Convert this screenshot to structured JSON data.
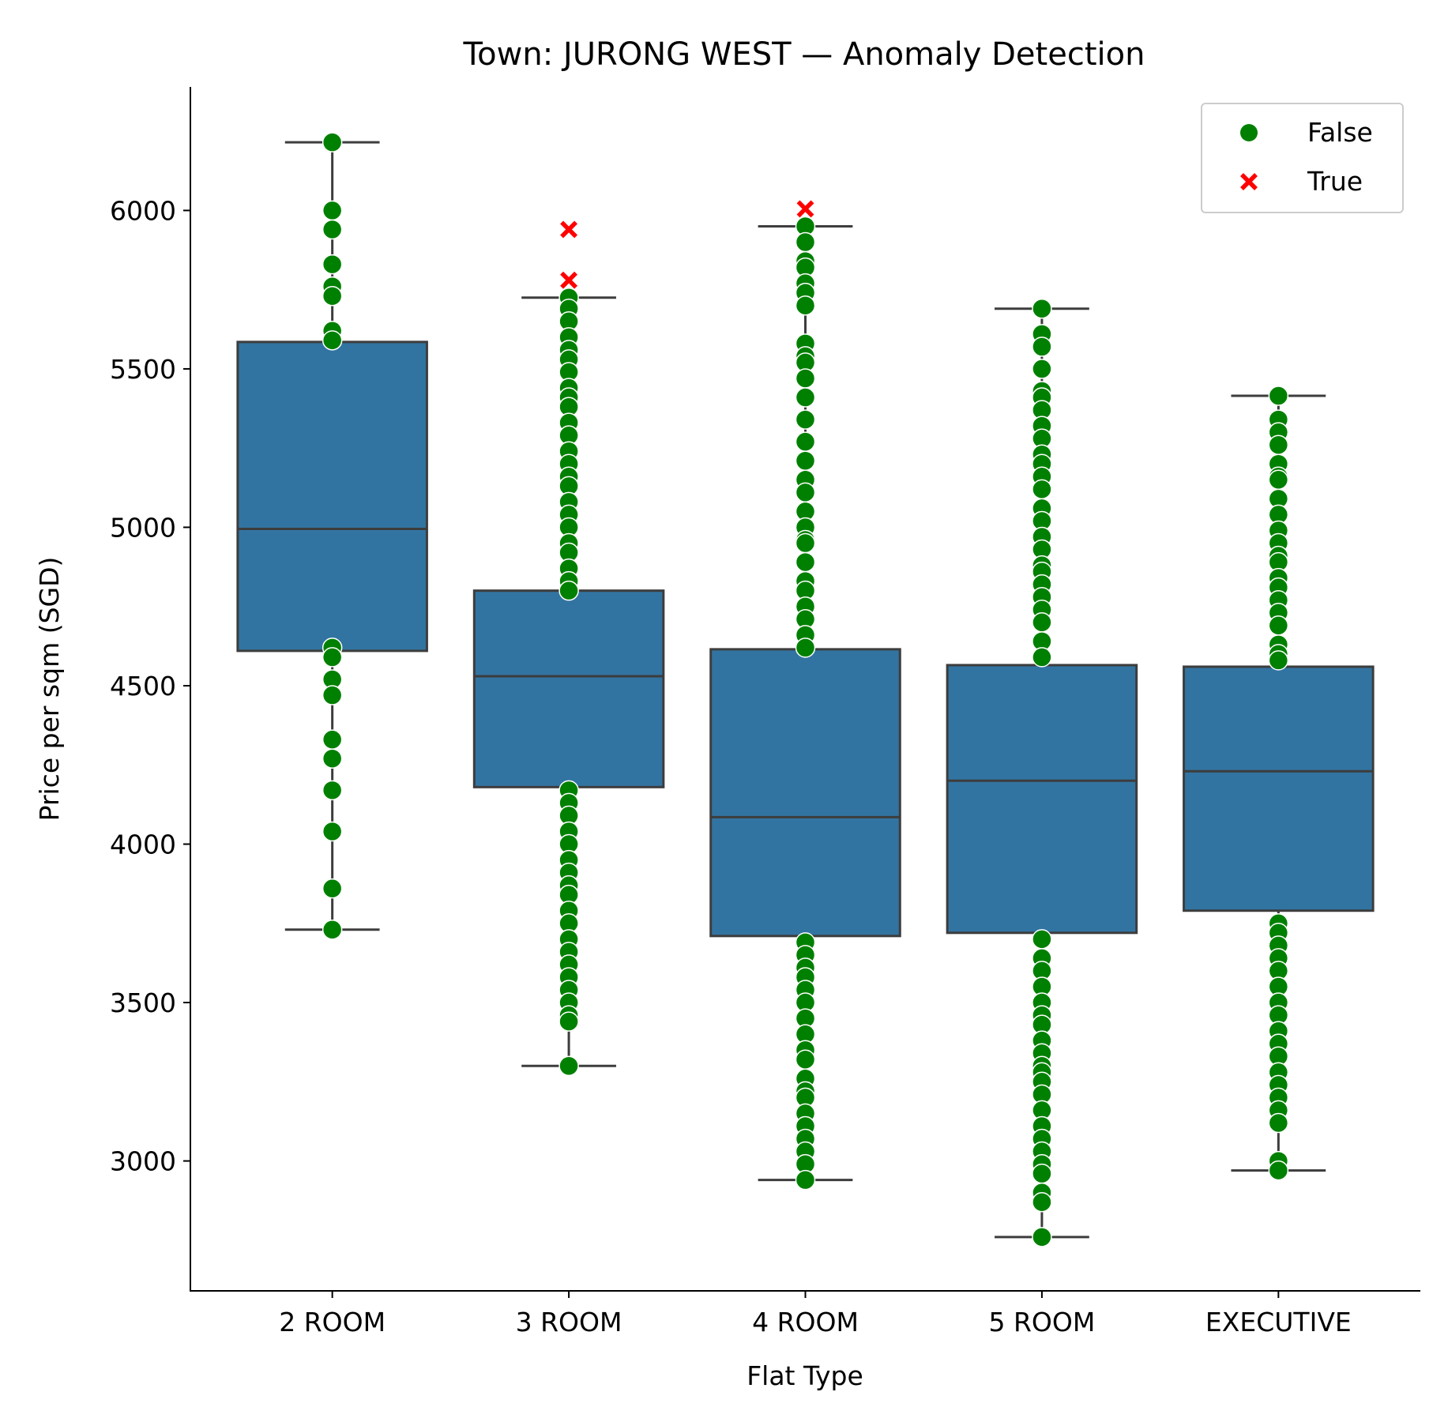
{
  "chart_data": {
    "type": "box",
    "title": "Town: JURONG WEST — Anomaly Detection",
    "xlabel": "Flat Type",
    "ylabel": "Price per sqm (SGD)",
    "ylim": [
      2590,
      6390
    ],
    "yticks": [
      3000,
      3500,
      4000,
      4500,
      5000,
      5500,
      6000
    ],
    "categories": [
      "2 ROOM",
      "3 ROOM",
      "4 ROOM",
      "5 ROOM",
      "EXECUTIVE"
    ],
    "boxes": [
      {
        "category": "2 ROOM",
        "whisker_low": 3730,
        "q1": 4610,
        "median": 4995,
        "q3": 5585,
        "whisker_high": 6215
      },
      {
        "category": "3 ROOM",
        "whisker_low": 3300,
        "q1": 4180,
        "median": 4530,
        "q3": 4800,
        "whisker_high": 5725
      },
      {
        "category": "4 ROOM",
        "whisker_low": 2940,
        "q1": 3710,
        "median": 4085,
        "q3": 4615,
        "whisker_high": 5950
      },
      {
        "category": "5 ROOM",
        "whisker_low": 2760,
        "q1": 3720,
        "median": 4200,
        "q3": 4565,
        "whisker_high": 5690
      },
      {
        "category": "EXECUTIVE",
        "whisker_low": 2970,
        "q1": 3790,
        "median": 4230,
        "q3": 4560,
        "whisker_high": 5415
      }
    ],
    "series": [
      {
        "name": "False",
        "color": "#008000",
        "marker": "circle",
        "points": [
          {
            "category": "2 ROOM",
            "values": [
              6215,
              6000,
              5940,
              5830,
              5760,
              5730,
              5620,
              5590,
              4620,
              4590,
              4520,
              4470,
              4330,
              4270,
              4170,
              4040,
              3860,
              3730
            ]
          },
          {
            "category": "3 ROOM",
            "values": [
              5725,
              5690,
              5650,
              5600,
              5560,
              5530,
              5490,
              5440,
              5410,
              5380,
              5330,
              5290,
              5240,
              5200,
              5160,
              5130,
              5080,
              5040,
              5000,
              4950,
              4920,
              4870,
              4830,
              4800,
              4170,
              4130,
              4090,
              4040,
              4000,
              3950,
              3910,
              3870,
              3840,
              3790,
              3750,
              3700,
              3660,
              3620,
              3580,
              3540,
              3500,
              3460,
              3440,
              3300
            ]
          },
          {
            "category": "4 ROOM",
            "values": [
              5950,
              5900,
              5840,
              5820,
              5770,
              5740,
              5700,
              5580,
              5540,
              5520,
              5470,
              5410,
              5340,
              5270,
              5210,
              5150,
              5110,
              5050,
              5000,
              4960,
              4950,
              4890,
              4830,
              4800,
              4750,
              4710,
              4660,
              4620,
              3690,
              3650,
              3610,
              3580,
              3540,
              3500,
              3450,
              3400,
              3350,
              3320,
              3260,
              3220,
              3200,
              3150,
              3110,
              3070,
              3030,
              2990,
              2940
            ]
          },
          {
            "category": "5 ROOM",
            "values": [
              5690,
              5610,
              5570,
              5500,
              5430,
              5410,
              5370,
              5320,
              5280,
              5230,
              5200,
              5160,
              5120,
              5060,
              5020,
              4970,
              4930,
              4880,
              4860,
              4820,
              4780,
              4740,
              4700,
              4640,
              4590,
              3700,
              3640,
              3600,
              3550,
              3500,
              3460,
              3430,
              3380,
              3340,
              3300,
              3280,
              3250,
              3210,
              3160,
              3110,
              3070,
              3030,
              2990,
              2960,
              2900,
              2870,
              2760
            ]
          },
          {
            "category": "EXECUTIVE",
            "values": [
              5415,
              5340,
              5300,
              5260,
              5200,
              5160,
              5150,
              5090,
              5040,
              4990,
              4950,
              4910,
              4890,
              4840,
              4810,
              4770,
              4730,
              4690,
              4630,
              4600,
              4580,
              3750,
              3720,
              3680,
              3640,
              3600,
              3550,
              3500,
              3460,
              3410,
              3370,
              3330,
              3280,
              3240,
              3200,
              3160,
              3120,
              3000,
              2970
            ]
          }
        ]
      },
      {
        "name": "True",
        "color": "#ff0000",
        "marker": "x",
        "points": [
          {
            "category": "3 ROOM",
            "values": [
              5940,
              5780
            ]
          },
          {
            "category": "4 ROOM",
            "values": [
              6005
            ]
          }
        ]
      }
    ],
    "box_color": "#3274a1",
    "box_edge_color": "#3d3d3d",
    "legend": {
      "position": "top-right",
      "entries": [
        "False",
        "True"
      ]
    },
    "grid": false
  }
}
